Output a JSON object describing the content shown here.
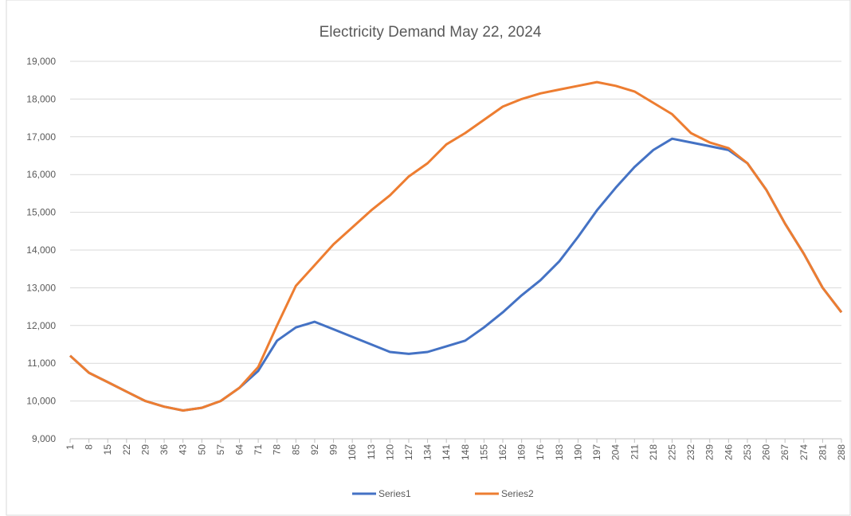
{
  "chart_data": {
    "type": "line",
    "title": "Electricity Demand May 22, 2024",
    "x": [
      1,
      8,
      15,
      22,
      29,
      36,
      43,
      50,
      57,
      64,
      71,
      78,
      85,
      92,
      99,
      106,
      113,
      120,
      127,
      134,
      141,
      148,
      155,
      162,
      169,
      176,
      183,
      190,
      197,
      204,
      211,
      218,
      225,
      232,
      239,
      246,
      253,
      260,
      267,
      274,
      281,
      288
    ],
    "xlim": [
      1,
      288
    ],
    "xticks": [
      1,
      8,
      15,
      22,
      29,
      36,
      43,
      50,
      57,
      64,
      71,
      78,
      85,
      92,
      99,
      106,
      113,
      120,
      127,
      134,
      141,
      148,
      155,
      162,
      169,
      176,
      183,
      190,
      197,
      204,
      211,
      218,
      225,
      232,
      239,
      246,
      253,
      260,
      267,
      274,
      281,
      288
    ],
    "ylim": [
      9000,
      19000
    ],
    "yticks": [
      {
        "value": 9000,
        "label": "9,000"
      },
      {
        "value": 10000,
        "label": "10,000"
      },
      {
        "value": 11000,
        "label": "11,000"
      },
      {
        "value": 12000,
        "label": "12,000"
      },
      {
        "value": 13000,
        "label": "13,000"
      },
      {
        "value": 14000,
        "label": "14,000"
      },
      {
        "value": 15000,
        "label": "15,000"
      },
      {
        "value": 16000,
        "label": "16,000"
      },
      {
        "value": 17000,
        "label": "17,000"
      },
      {
        "value": 18000,
        "label": "18,000"
      },
      {
        "value": 19000,
        "label": "19,000"
      }
    ],
    "grid": true,
    "legend": "bottom",
    "series": [
      {
        "name": "Series1",
        "color": "#4472c4",
        "values": [
          11200,
          10750,
          10500,
          10250,
          10000,
          9850,
          9750,
          9820,
          10000,
          10350,
          10800,
          11600,
          11950,
          12100,
          11900,
          11700,
          11500,
          11300,
          11250,
          11300,
          11450,
          11600,
          11950,
          12350,
          12800,
          13200,
          13700,
          14350,
          15050,
          15650,
          16200,
          16650,
          16950,
          16850,
          16750,
          16650,
          16300,
          15600,
          14700,
          13900,
          13000,
          12350
        ]
      },
      {
        "name": "Series2",
        "color": "#ed7d31",
        "values": [
          11200,
          10750,
          10500,
          10250,
          10000,
          9850,
          9750,
          9820,
          10000,
          10350,
          10900,
          12000,
          13050,
          13600,
          14150,
          14600,
          15050,
          15450,
          15950,
          16300,
          16800,
          17100,
          17450,
          17800,
          18000,
          18150,
          18250,
          18350,
          18450,
          18350,
          18200,
          17900,
          17600,
          17100,
          16850,
          16700,
          16300,
          15600,
          14700,
          13900,
          13000,
          12350
        ]
      }
    ]
  }
}
